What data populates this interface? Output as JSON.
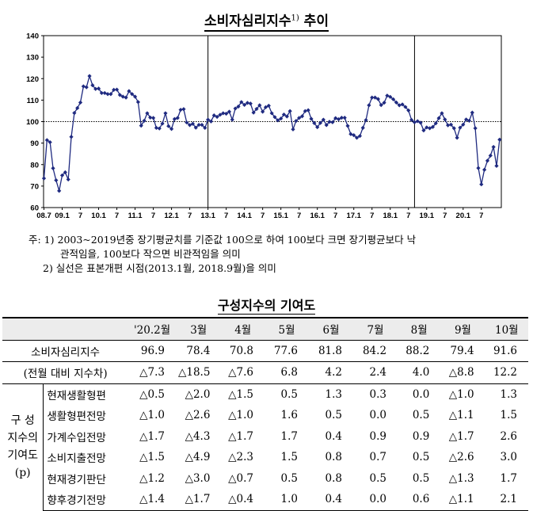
{
  "title": "소비자심리지수",
  "title_sup": "1)",
  "title_suffix": " 추이",
  "chart_data": {
    "type": "line",
    "yticks": [
      60,
      70,
      80,
      90,
      100,
      110,
      120,
      130,
      140
    ],
    "ylim": [
      60,
      140
    ],
    "xlabels": [
      "08.7",
      "09.1",
      "7",
      "10.1",
      "7",
      "11.1",
      "7",
      "12.1",
      "7",
      "13.1",
      "7",
      "14.1",
      "7",
      "15.1",
      "7",
      "16.1",
      "7",
      "17.1",
      "7",
      "18.1",
      "7",
      "19.1",
      "7",
      "20.1",
      "7"
    ],
    "reference_line": 100,
    "vertical_markers": [
      "13.1",
      "18.9"
    ],
    "series": [
      {
        "values": [
          73.6,
          91.4,
          90.4,
          78.3,
          72.7,
          67.8,
          75.0,
          76.4,
          73.1,
          92.9,
          104.0,
          106.3,
          108.9,
          116.4,
          116.0,
          121.2,
          116.9,
          115.2,
          115.4,
          113.3,
          113.3,
          112.8,
          112.8,
          114.8,
          114.9,
          112.4,
          111.6,
          111.2,
          114.2,
          112.8,
          111.6,
          109.1,
          98.1,
          100.4,
          103.9,
          101.9,
          101.7,
          97.1,
          96.8,
          99.1,
          103.9,
          97.9,
          96.6,
          101.2,
          101.7,
          105.5,
          105.8,
          99.6,
          98.4,
          99.0,
          97.2,
          98.5,
          98.5,
          97.1,
          100.9,
          100.1,
          102.9,
          102.2,
          103.2,
          103.9,
          103.7,
          104.6,
          100.9,
          106.1,
          107.0,
          109.1,
          107.8,
          108.7,
          108.4,
          104.2,
          105.9,
          107.6,
          104.6,
          106.7,
          107.4,
          103.9,
          102.1,
          100.6,
          101.4,
          103.3,
          102.4,
          104.9,
          96.4,
          100.3,
          101.7,
          102.5,
          104.9,
          105.3,
          101.3,
          99.3,
          97.4,
          99.4,
          100.9,
          98.4,
          99.9,
          99.7,
          101.6,
          101.1,
          101.8,
          101.8,
          98.0,
          94.2,
          93.7,
          92.5,
          93.3,
          97.1,
          100.7,
          107.6,
          111.2,
          111.2,
          110.5,
          107.7,
          108.8,
          112.1,
          111.5,
          110.4,
          108.9,
          107.6,
          108.0,
          106.8,
          105.2,
          100.8,
          99.7,
          100.2,
          99.5,
          95.9,
          97.3,
          96.9,
          97.5,
          99.2,
          101.6,
          103.9,
          101.0,
          98.3,
          98.6,
          96.9,
          92.5,
          97.2,
          98.6,
          101.0,
          100.4,
          104.2,
          96.9,
          78.4,
          70.8,
          77.6,
          81.8,
          84.2,
          88.2,
          79.4,
          91.6
        ]
      }
    ]
  },
  "notes": {
    "n1_a": "주: 1)  2003~2019년중 장기평균치를 기준값 100으로 하여 100보다 크면 장기평균보다 낙",
    "n1_b": "관적임을, 100보다 작으면 비관적임을 의미",
    "n2": "2)  실선은 표본개편 시점(2013.1월, 2018.9월)을 의미"
  },
  "table_title": "구성지수의 기여도",
  "table": {
    "months": [
      "'20.2월",
      "3월",
      "4월",
      "5월",
      "6월",
      "7월",
      "8월",
      "9월",
      "10월"
    ],
    "csi_label": "소비자심리지수",
    "csi": [
      "96.9",
      "78.4",
      "70.8",
      "77.6",
      "81.8",
      "84.2",
      "88.2",
      "79.4",
      "91.6"
    ],
    "diff_label": "(전월 대비 지수차)",
    "diff": [
      "△7.3",
      "△18.5",
      "△7.6",
      "6.8",
      "4.2",
      "2.4",
      "4.0",
      "△8.8",
      "12.2"
    ],
    "group_label_1": "구  성",
    "group_label_2": "지수의",
    "group_label_3": "기여도",
    "group_label_4": "(p)",
    "components": [
      {
        "name": "현재생활형편",
        "values": [
          "△0.5",
          "△2.0",
          "△1.5",
          "0.5",
          "1.3",
          "0.3",
          "0.0",
          "△1.0",
          "1.3"
        ]
      },
      {
        "name": "생활형편전망",
        "values": [
          "△1.0",
          "△2.6",
          "△1.0",
          "1.6",
          "0.5",
          "0.0",
          "0.5",
          "△1.1",
          "1.5"
        ]
      },
      {
        "name": "가계수입전망",
        "values": [
          "△1.7",
          "△4.3",
          "△1.7",
          "1.7",
          "0.4",
          "0.9",
          "0.9",
          "△1.7",
          "2.6"
        ]
      },
      {
        "name": "소비지출전망",
        "values": [
          "△1.5",
          "△4.9",
          "△2.3",
          "1.5",
          "0.8",
          "0.7",
          "0.5",
          "△2.6",
          "3.0"
        ]
      },
      {
        "name": "현재경기판단",
        "values": [
          "△1.2",
          "△3.0",
          "△0.7",
          "0.5",
          "0.8",
          "0.5",
          "0.5",
          "△1.3",
          "1.7"
        ]
      },
      {
        "name": "향후경기전망",
        "values": [
          "△1.4",
          "△1.7",
          "△0.4",
          "1.0",
          "0.4",
          "0.0",
          "0.6",
          "△1.1",
          "2.1"
        ]
      }
    ]
  },
  "colors": {
    "line": "#1f2a80",
    "marker": "#1f2a80",
    "reference": "#000000",
    "header_bg": "#ececec"
  }
}
